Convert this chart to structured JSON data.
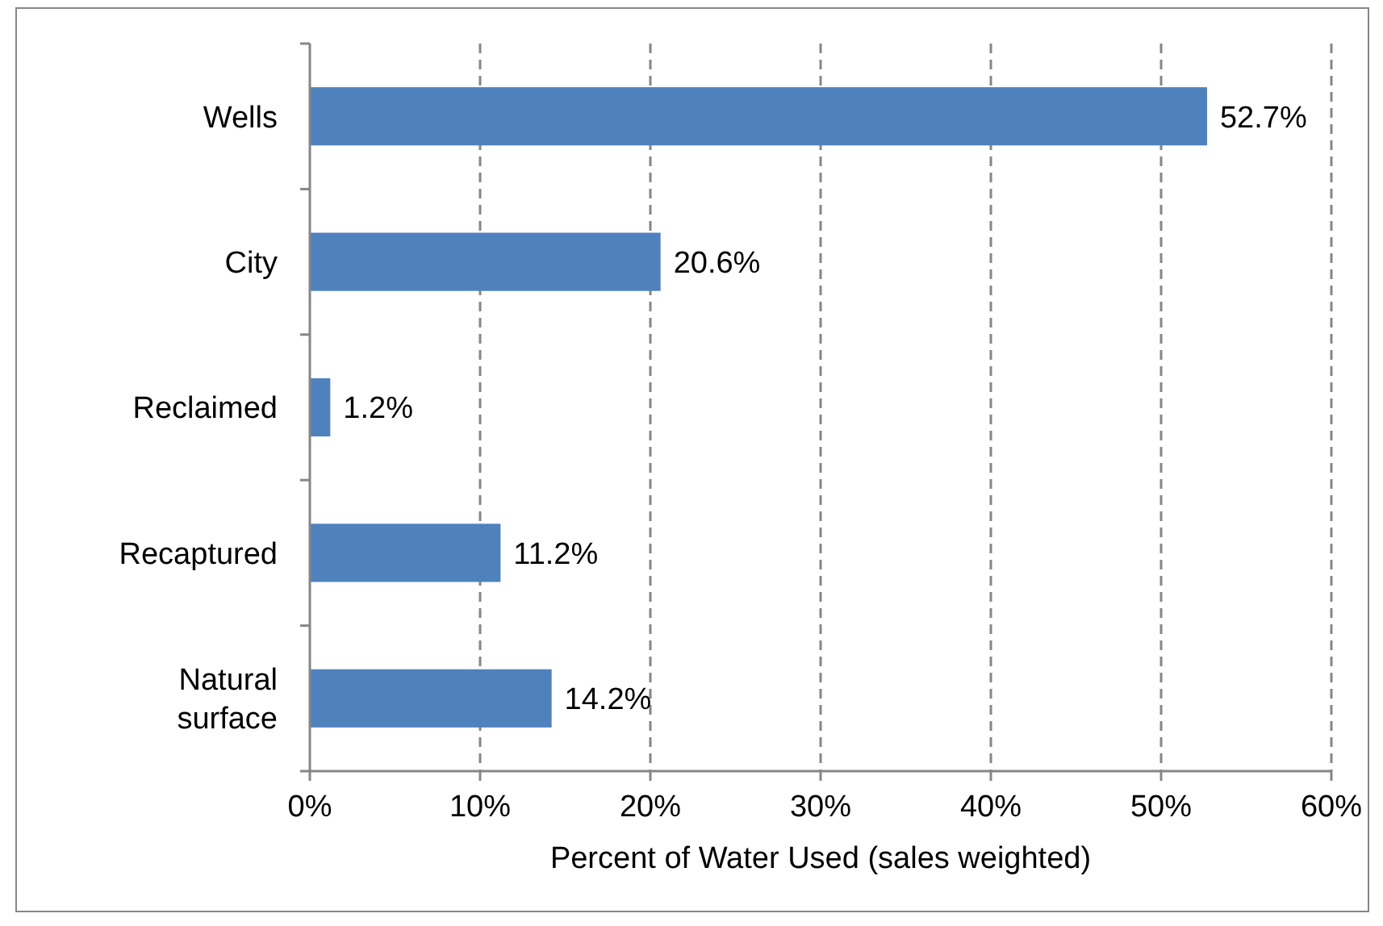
{
  "chart_data": {
    "type": "bar",
    "orientation": "horizontal",
    "xlabel": "Percent of Water Used (sales weighted)",
    "categories": [
      "Wells",
      "City",
      "Reclaimed",
      "Recaptured",
      "Natural surface"
    ],
    "values": [
      52.7,
      20.6,
      1.2,
      11.2,
      14.2
    ],
    "color": "#4f81bd",
    "value_labels": [
      "52.7%",
      "20.6%",
      "1.2%",
      "11.2%",
      "14.2%"
    ],
    "xlim": [
      0,
      60
    ],
    "xticks": [
      {
        "value": 0,
        "label": "0%"
      },
      {
        "value": 10,
        "label": "10%"
      },
      {
        "value": 20,
        "label": "20%"
      },
      {
        "value": 30,
        "label": "30%"
      },
      {
        "value": 40,
        "label": "40%"
      },
      {
        "value": 50,
        "label": "50%"
      },
      {
        "value": 60,
        "label": "60%"
      }
    ],
    "grid": "x"
  }
}
